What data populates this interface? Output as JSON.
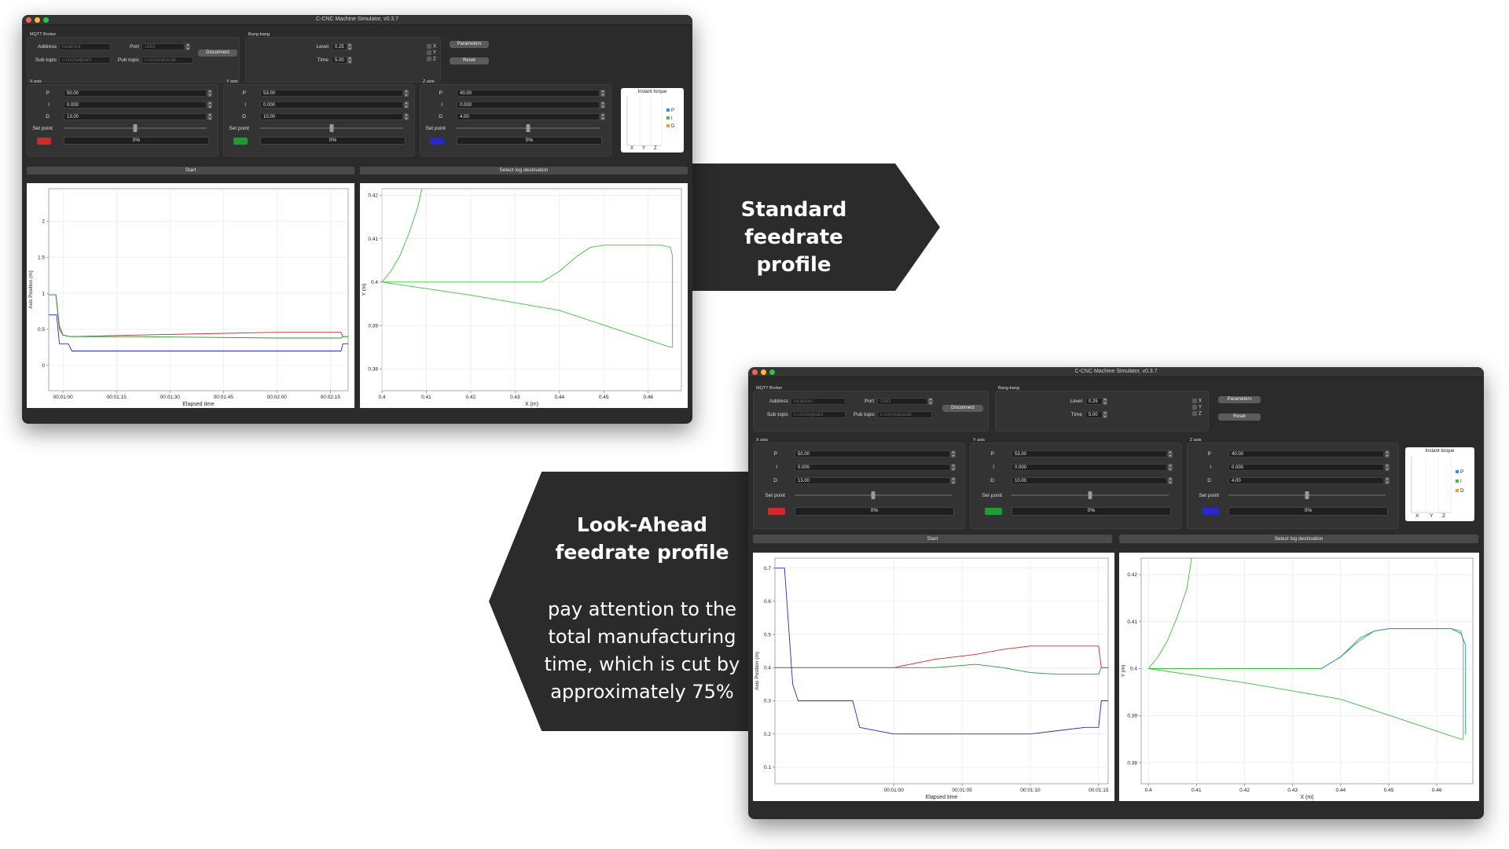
{
  "app": {
    "title": "C-CNC Machine Simulator, v0.3.7",
    "mqtt": {
      "group_label": "MQTT Broker",
      "address_label": "Address",
      "address_placeholder": "localhost",
      "port_label": "Port",
      "port_placeholder": "1883",
      "sub_topic_label": "Sub topic",
      "sub_topic_placeholder": "c-cnc/setpoint",
      "pub_topic_label": "Pub topic",
      "pub_topic_placeholder": "c-cnc/status/all",
      "disconnect_label": "Disconnect"
    },
    "bangbang": {
      "group_label": "Bang-bang",
      "level_label": "Level",
      "level_value": "0.25",
      "time_label": "Time",
      "time_value": "5.00",
      "axes": [
        "X",
        "Y",
        "Z"
      ],
      "parameters_label": "Parameters",
      "reset_label": "Reset"
    },
    "axes": [
      {
        "label": "X axis",
        "p": "50.00",
        "i": "0.000",
        "d": "13.00",
        "setpoint_label": "Set point",
        "progress": "0%",
        "color": "#d12a2a",
        "slider_fraction": 0.5
      },
      {
        "label": "Y axis",
        "p": "53.00",
        "i": "0.000",
        "d": "10.00",
        "setpoint_label": "Set point",
        "progress": "0%",
        "color": "#1f9a34",
        "slider_fraction": 0.5
      },
      {
        "label": "Z axis",
        "p": "40.00",
        "i": "0.000",
        "d": "4.00",
        "setpoint_label": "Set point",
        "progress": "0%",
        "color": "#2828c8",
        "slider_fraction": 0.5
      }
    ],
    "pid_labels": {
      "p": "P",
      "i": "I",
      "d": "D"
    },
    "torque": {
      "title": "Instant torque",
      "legend": [
        {
          "label": "P",
          "color": "#2f8fe0"
        },
        {
          "label": "I",
          "color": "#3cc23c"
        },
        {
          "label": "D",
          "color": "#f0a020"
        }
      ],
      "xticks": [
        "X",
        "Y",
        "Z"
      ]
    },
    "start_label": "Start",
    "log_label": "Select log destination"
  },
  "callout_standard": {
    "title_lines": [
      "Standard feedrate",
      "profile"
    ]
  },
  "callout_lookahead": {
    "title_lines": [
      "Look-Ahead",
      "feedrate profile"
    ],
    "body_lines": [
      "pay attention to the",
      "total manufacturing",
      "time, which is cut by",
      "approximately 75%"
    ]
  },
  "chart_data": [
    {
      "type": "line",
      "window": "standard",
      "xlabel": "Elapsed time",
      "ylabel": "Axis Position (m)",
      "x_ticks": [
        "00:01:00",
        "00:01:15",
        "00:01:30",
        "00:01:45",
        "00:02:00",
        "00:02:15"
      ],
      "x_range_seconds": [
        56,
        140
      ],
      "y_ticks": [
        0,
        0.5,
        1,
        1.5,
        2
      ],
      "ylim": [
        -0.35,
        2.45
      ],
      "series": [
        {
          "color": "#d12a2a",
          "x": [
            56,
            58,
            59,
            60,
            62,
            80,
            100,
            120,
            138,
            138.5,
            140
          ],
          "y": [
            0.98,
            0.98,
            0.5,
            0.42,
            0.4,
            0.42,
            0.44,
            0.46,
            0.46,
            0.4,
            0.4
          ]
        },
        {
          "color": "#1f9a34",
          "x": [
            56,
            58,
            59,
            60,
            62,
            80,
            100,
            120,
            138,
            138.5,
            140
          ],
          "y": [
            0.98,
            0.98,
            0.55,
            0.42,
            0.4,
            0.4,
            0.39,
            0.38,
            0.38,
            0.4,
            0.4
          ]
        },
        {
          "color": "#2828c8",
          "x": [
            56,
            58.2,
            59,
            60,
            61.5,
            62.5,
            80,
            100,
            120,
            138,
            138.5,
            140
          ],
          "y": [
            0.7,
            0.7,
            0.3,
            0.3,
            0.3,
            0.2,
            0.2,
            0.2,
            0.2,
            0.2,
            0.3,
            0.3
          ]
        }
      ]
    },
    {
      "type": "line",
      "window": "standard",
      "xlabel": "X (m)",
      "ylabel": "Y (m)",
      "x_ticks": [
        0.4,
        0.41,
        0.42,
        0.43,
        0.44,
        0.45,
        0.46
      ],
      "y_ticks": [
        0.38,
        0.39,
        0.4,
        0.41,
        0.42
      ],
      "xlim": [
        0.4,
        0.4675
      ],
      "ylim": [
        0.375,
        0.4215
      ],
      "series": [
        {
          "color": "#3cbf3c",
          "x": [
            0.4,
            0.402,
            0.404,
            0.406,
            0.408,
            0.409
          ],
          "y": [
            0.4,
            0.4025,
            0.406,
            0.411,
            0.417,
            0.4215
          ]
        },
        {
          "color": "#3cbf3c",
          "x": [
            0.4,
            0.436,
            0.44,
            0.444,
            0.447,
            0.45,
            0.455,
            0.46,
            0.463,
            0.465,
            0.4655,
            0.4655,
            0.465,
            0.44,
            0.42,
            0.4
          ],
          "y": [
            0.4,
            0.4,
            0.4025,
            0.406,
            0.408,
            0.4085,
            0.4085,
            0.4085,
            0.4085,
            0.408,
            0.406,
            0.385,
            0.385,
            0.3935,
            0.397,
            0.4
          ]
        }
      ]
    },
    {
      "type": "line",
      "window": "look-ahead",
      "xlabel": "Elapsed time",
      "ylabel": "Axis Position (m)",
      "x_ticks": [
        "00:01:00",
        "00:01:05",
        "00:01:10",
        "00:01:15"
      ],
      "x_range_seconds": [
        51.3,
        75.7
      ],
      "y_ticks": [
        0.1,
        0.2,
        0.3,
        0.4,
        0.5,
        0.6,
        0.7
      ],
      "ylim": [
        0.05,
        0.73
      ],
      "series": [
        {
          "color": "#d12a2a",
          "x": [
            51.3,
            52.5,
            53,
            53.2,
            60,
            63,
            66,
            68,
            70,
            72,
            74,
            75,
            75.2,
            75.7
          ],
          "y": [
            0.4,
            0.4,
            0.4,
            0.4,
            0.4,
            0.425,
            0.44,
            0.455,
            0.465,
            0.465,
            0.465,
            0.465,
            0.4,
            0.4
          ]
        },
        {
          "color": "#1f9a34",
          "x": [
            51.3,
            53,
            60,
            63,
            66,
            68,
            70,
            72,
            74,
            75,
            75.2,
            75.7
          ],
          "y": [
            0.4,
            0.4,
            0.4,
            0.4,
            0.41,
            0.4,
            0.385,
            0.38,
            0.38,
            0.38,
            0.4,
            0.4
          ]
        },
        {
          "color": "#2828c8",
          "x": [
            51.3,
            52,
            52.6,
            53,
            56,
            57,
            57.5,
            60,
            63,
            66,
            68,
            70,
            72,
            74,
            75,
            75.2,
            75.7
          ],
          "y": [
            0.7,
            0.7,
            0.35,
            0.3,
            0.3,
            0.3,
            0.22,
            0.2,
            0.2,
            0.2,
            0.2,
            0.2,
            0.21,
            0.22,
            0.22,
            0.3,
            0.3
          ]
        }
      ]
    },
    {
      "type": "line",
      "window": "look-ahead",
      "xlabel": "X (m)",
      "ylabel": "Y (m)",
      "x_ticks": [
        0.4,
        0.41,
        0.42,
        0.43,
        0.44,
        0.45,
        0.46
      ],
      "y_ticks": [
        0.38,
        0.39,
        0.4,
        0.41,
        0.42
      ],
      "xlim": [
        0.3985,
        0.4675
      ],
      "ylim": [
        0.3755,
        0.4235
      ],
      "series": [
        {
          "color": "#3cbf3c",
          "x": [
            0.4,
            0.402,
            0.404,
            0.406,
            0.408,
            0.409
          ],
          "y": [
            0.4,
            0.4025,
            0.406,
            0.411,
            0.417,
            0.4235
          ]
        },
        {
          "color": "#3cbf3c",
          "x": [
            0.4,
            0.436,
            0.44,
            0.444,
            0.447,
            0.45,
            0.455,
            0.46,
            0.463,
            0.465,
            0.4655,
            0.4655,
            0.465,
            0.44,
            0.42,
            0.4
          ],
          "y": [
            0.4,
            0.4,
            0.4025,
            0.406,
            0.408,
            0.4085,
            0.4085,
            0.4085,
            0.4085,
            0.408,
            0.406,
            0.385,
            0.385,
            0.3935,
            0.397,
            0.4
          ]
        },
        {
          "color": "#2f7fd8",
          "x": [
            0.436,
            0.44,
            0.444,
            0.447,
            0.45,
            0.455,
            0.46,
            0.463,
            0.465,
            0.466,
            0.466
          ],
          "y": [
            0.4,
            0.4025,
            0.4065,
            0.408,
            0.4085,
            0.4085,
            0.4085,
            0.4085,
            0.4075,
            0.405,
            0.386
          ]
        }
      ]
    }
  ]
}
